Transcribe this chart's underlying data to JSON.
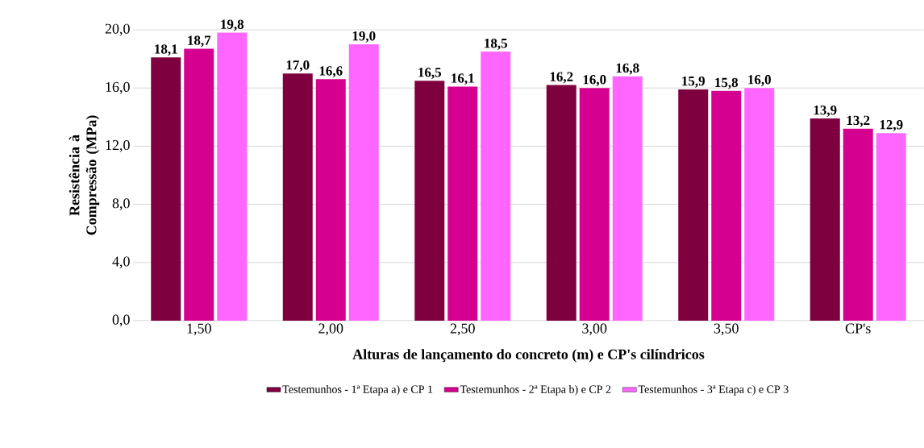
{
  "chart_data": {
    "type": "bar",
    "xlabel": "Alturas de lançamento do concreto (m)  e CP's cilíndricos",
    "ylabel": "Resistência à Compressão (MPa)",
    "categories": [
      "1,50",
      "2,00",
      "2,50",
      "3,00",
      "3,50",
      "CP's"
    ],
    "series": [
      {
        "name": "Testemunhos - 1ª Etapa a) e CP 1",
        "color": "#7f003f",
        "values": [
          18.1,
          17.0,
          16.5,
          16.2,
          15.9,
          13.9
        ],
        "value_labels": [
          "18,1",
          "17,0",
          "16,5",
          "16,2",
          "15,9",
          "13,9"
        ]
      },
      {
        "name": "Testemunhos - 2ª Etapa b) e CP 2",
        "color": "#d5008f",
        "values": [
          18.7,
          16.6,
          16.1,
          16.0,
          15.8,
          13.2
        ],
        "value_labels": [
          "18,7",
          "16,6",
          "16,1",
          "16,0",
          "15,8",
          "13,2"
        ]
      },
      {
        "name": "Testemunhos - 3ª Etapa c) e CP 3",
        "color": "#ff66ff",
        "values": [
          19.8,
          19.0,
          18.5,
          16.8,
          16.0,
          12.9
        ],
        "value_labels": [
          "19,8",
          "19,0",
          "18,5",
          "16,8",
          "16,0",
          "12,9"
        ]
      }
    ],
    "ylim": [
      0,
      20
    ],
    "yticks": [
      {
        "value": 0,
        "label": "0,0"
      },
      {
        "value": 4,
        "label": "4,0"
      },
      {
        "value": 8,
        "label": "8,0"
      },
      {
        "value": 12,
        "label": "12,0"
      },
      {
        "value": 16,
        "label": "16,0"
      },
      {
        "value": 20,
        "label": "20,0"
      }
    ],
    "grid": "y",
    "legend": "bottom"
  }
}
